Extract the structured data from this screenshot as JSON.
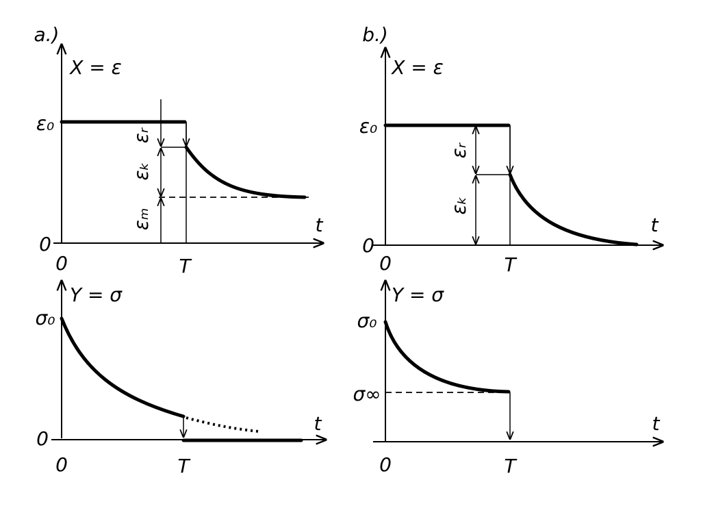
{
  "panels": [
    {
      "label": "a.)",
      "top": {
        "y_axis_label": "X = ε",
        "y_ticks": [
          "ε₀",
          "0"
        ],
        "x_ticks": [
          "0",
          "T"
        ],
        "x_axis_label": "t",
        "annotations": [
          "εᵣ",
          "εₖ",
          "εₘ"
        ]
      },
      "bottom": {
        "y_axis_label": "Y = σ",
        "y_ticks": [
          "σ₀",
          "0"
        ],
        "x_ticks": [
          "0",
          "T"
        ],
        "x_axis_label": "t"
      }
    },
    {
      "label": "b.)",
      "top": {
        "y_axis_label": "X = ε",
        "y_ticks": [
          "ε₀",
          "0"
        ],
        "x_ticks": [
          "0",
          "T"
        ],
        "x_axis_label": "t",
        "annotations": [
          "εᵣ",
          "εₖ"
        ]
      },
      "bottom": {
        "y_axis_label": "Y = σ",
        "y_ticks": [
          "σ₀",
          "σ∞"
        ],
        "x_ticks": [
          "0",
          "T"
        ],
        "x_axis_label": "t"
      }
    }
  ]
}
